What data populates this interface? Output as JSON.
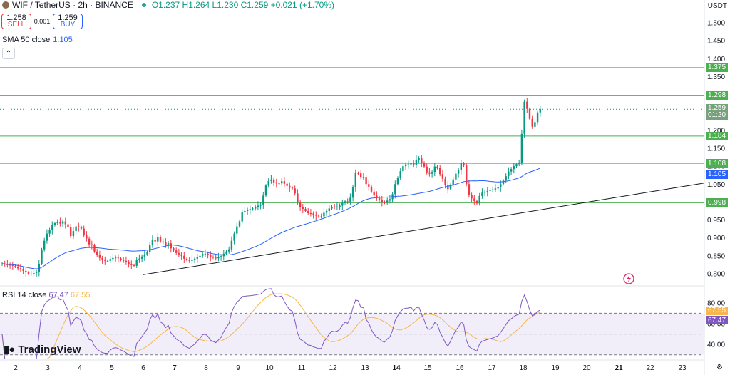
{
  "header": {
    "symbol": "WIF / TetherUS · 2h · BINANCE",
    "ohlc": "O1.237  H1.264  L1.230  C1.259  +0.021 (+1.70%)"
  },
  "trade": {
    "sell_price": "1.258",
    "sell_label": "SELL",
    "spread": "0.001",
    "buy_price": "1.259",
    "buy_label": "BUY"
  },
  "sma_legend": {
    "label": "SMA 50 close",
    "value": "1.105"
  },
  "rsi_legend": {
    "label": "RSI 14 close",
    "value": "67.47",
    "ma_value": "67.55"
  },
  "brand": "TradingView",
  "currency": "USDT",
  "colors": {
    "up": "#089981",
    "down": "#f23645",
    "sma": "#2962ff",
    "rsi": "#7e57c2",
    "rsi_ma": "#f7b74a",
    "hline": "#4caf50"
  },
  "chart_data": {
    "type": "candlestick",
    "price_axis": {
      "ylim": [
        0.77,
        1.52
      ],
      "ticks": [
        "1.500",
        "1.450",
        "1.400",
        "1.350",
        "1.300",
        "1.250",
        "1.200",
        "1.150",
        "1.100",
        "1.050",
        "1.000",
        "0.950",
        "0.900",
        "0.850",
        "0.800"
      ]
    },
    "x_ticks": [
      {
        "label": "2",
        "x": 22,
        "bold": false
      },
      {
        "label": "3",
        "x": 67,
        "bold": false
      },
      {
        "label": "4",
        "x": 112,
        "bold": false
      },
      {
        "label": "5",
        "x": 157,
        "bold": false
      },
      {
        "label": "6",
        "x": 201,
        "bold": false
      },
      {
        "label": "7",
        "x": 245,
        "bold": true
      },
      {
        "label": "8",
        "x": 289,
        "bold": false
      },
      {
        "label": "9",
        "x": 334,
        "bold": false
      },
      {
        "label": "10",
        "x": 378,
        "bold": false
      },
      {
        "label": "11",
        "x": 423,
        "bold": false
      },
      {
        "label": "12",
        "x": 467,
        "bold": false
      },
      {
        "label": "13",
        "x": 512,
        "bold": false
      },
      {
        "label": "14",
        "x": 556,
        "bold": true
      },
      {
        "label": "15",
        "x": 600,
        "bold": false
      },
      {
        "label": "16",
        "x": 645,
        "bold": false
      },
      {
        "label": "17",
        "x": 690,
        "bold": false
      },
      {
        "label": "18",
        "x": 734,
        "bold": false
      },
      {
        "label": "19",
        "x": 779,
        "bold": false
      },
      {
        "label": "20",
        "x": 823,
        "bold": false
      },
      {
        "label": "21",
        "x": 868,
        "bold": true
      },
      {
        "label": "22",
        "x": 912,
        "bold": false
      },
      {
        "label": "23",
        "x": 957,
        "bold": false
      }
    ],
    "horizontal_levels": [
      {
        "value": 1.375,
        "label": "1.375"
      },
      {
        "value": 1.298,
        "label": "1.298"
      },
      {
        "value": 1.184,
        "label": "1.184"
      },
      {
        "value": 1.108,
        "label": "1.108"
      },
      {
        "value": 0.998,
        "label": "0.998"
      }
    ],
    "last_price": {
      "value": 1.259,
      "label": "1.259",
      "countdown": "01:20"
    },
    "sma_label": "1.105",
    "trendline": {
      "from": [
        200,
        0.797
      ],
      "to": [
        988,
        1.053
      ]
    },
    "candle_spacing": 3.7,
    "candle_start_x": 3,
    "closes": [
      0.828,
      0.826,
      0.825,
      0.824,
      0.822,
      0.82,
      0.815,
      0.812,
      0.808,
      0.804,
      0.8,
      0.8,
      0.802,
      0.805,
      0.828,
      0.868,
      0.892,
      0.912,
      0.922,
      0.936,
      0.941,
      0.944,
      0.94,
      0.946,
      0.938,
      0.931,
      0.905,
      0.919,
      0.932,
      0.93,
      0.926,
      0.907,
      0.898,
      0.882,
      0.88,
      0.862,
      0.852,
      0.844,
      0.838,
      0.836,
      0.836,
      0.841,
      0.844,
      0.845,
      0.843,
      0.839,
      0.836,
      0.832,
      0.827,
      0.824,
      0.822,
      0.838,
      0.842,
      0.848,
      0.854,
      0.86,
      0.88,
      0.895,
      0.89,
      0.903,
      0.89,
      0.887,
      0.88,
      0.885,
      0.871,
      0.865,
      0.858,
      0.854,
      0.85,
      0.842,
      0.839,
      0.836,
      0.839,
      0.842,
      0.846,
      0.85,
      0.855,
      0.856,
      0.853,
      0.847,
      0.845,
      0.843,
      0.846,
      0.849,
      0.856,
      0.862,
      0.868,
      0.892,
      0.912,
      0.932,
      0.946,
      0.972,
      0.975,
      0.978,
      0.98,
      0.982,
      0.985,
      0.99,
      0.993,
      1.018,
      1.046,
      1.059,
      1.063,
      1.055,
      1.052,
      1.052,
      1.058,
      1.051,
      1.045,
      1.04,
      1.038,
      1.024,
      1.0,
      0.985,
      0.981,
      0.975,
      0.969,
      0.968,
      0.964,
      0.962,
      0.96,
      0.96,
      0.97,
      0.975,
      0.982,
      0.987,
      0.986,
      0.987,
      0.99,
      0.997,
      1.002,
      1.001,
      1.012,
      1.041,
      1.081,
      1.08,
      1.07,
      1.07,
      1.05,
      1.043,
      1.029,
      1.018,
      1.011,
      1.007,
      1.0,
      0.998,
      1.004,
      1.008,
      1.022,
      1.05,
      1.068,
      1.086,
      1.1,
      1.105,
      1.105,
      1.11,
      1.104,
      1.118,
      1.122,
      1.11,
      1.099,
      1.083,
      1.079,
      1.084,
      1.099,
      1.095,
      1.078,
      1.065,
      1.048,
      1.036,
      1.048,
      1.063,
      1.079,
      1.089,
      1.108,
      1.102,
      1.05,
      1.02,
      1.01,
      1.003,
      0.996,
      1.017,
      1.026,
      1.028,
      1.031,
      1.033,
      1.035,
      1.038,
      1.041,
      1.05,
      1.06,
      1.072,
      1.085,
      1.092,
      1.1,
      1.106,
      1.11,
      1.19,
      1.28,
      1.26,
      1.232,
      1.21,
      1.223,
      1.25,
      1.259
    ],
    "rsi": {
      "ylim": [
        25,
        95
      ],
      "ticks": [
        "80.00",
        "60.00",
        "40.00"
      ],
      "band": [
        70,
        30
      ],
      "mid": 50,
      "last": "67.47",
      "ma_last": "67.55"
    }
  }
}
